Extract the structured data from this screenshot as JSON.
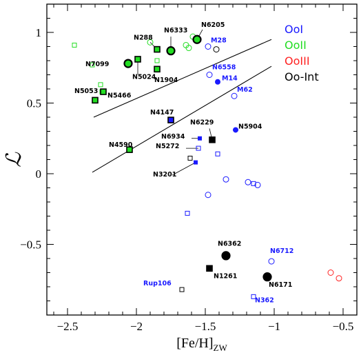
{
  "chart_data": {
    "type": "scatter",
    "xlabel": "[Fe/H]",
    "xlabel_sub": "ZW",
    "ylabel": "ℒ",
    "xlim": [
      -2.65,
      -0.4
    ],
    "ylim": [
      -1.0,
      1.2
    ],
    "xticks": [
      -2.5,
      -2,
      -1.5,
      -1,
      -0.5
    ],
    "xtick_labels": [
      "−2.5",
      "−2",
      "−1.5",
      "−1",
      "−0.5"
    ],
    "yticks": [
      -0.5,
      0,
      0.5,
      1
    ],
    "ytick_labels": [
      "−0.5",
      "0",
      "0.5",
      "1"
    ],
    "grid": false,
    "legend_position": "top-right",
    "colors": {
      "OoI": "#1a1aff",
      "OoII": "#22dd22",
      "OoIII": "#ff2222",
      "OoInt": "#000000"
    },
    "legend": [
      {
        "label": "OoI",
        "group": "OoI"
      },
      {
        "label": "OoII",
        "group": "OoII"
      },
      {
        "label": "OoIII",
        "group": "OoIII"
      },
      {
        "label": "Oo-Int",
        "group": "OoInt"
      }
    ],
    "lines": [
      {
        "x": [
          -2.31,
          -1.02
        ],
        "y": [
          0.4,
          0.95
        ]
      },
      {
        "x": [
          -2.32,
          -1.02
        ],
        "y": [
          0.01,
          0.76
        ]
      }
    ],
    "points": [
      {
        "x": -2.45,
        "y": 0.91,
        "shape": "square",
        "fill": "open",
        "group": "OoII"
      },
      {
        "x": -2.32,
        "y": 0.77,
        "shape": "square",
        "fill": "open",
        "group": "OoII"
      },
      {
        "x": -2.26,
        "y": 0.63,
        "shape": "square",
        "fill": "open",
        "group": "OoII"
      },
      {
        "x": -2.25,
        "y": 0.58,
        "shape": "square",
        "fill": "open",
        "group": "OoII"
      },
      {
        "x": -2.24,
        "y": 0.58,
        "shape": "square",
        "fill": "filled",
        "group": "OoII",
        "name": "N5466"
      },
      {
        "x": -2.3,
        "y": 0.52,
        "shape": "square",
        "fill": "filled",
        "group": "OoII",
        "name": "N5053"
      },
      {
        "x": -2.06,
        "y": 0.78,
        "shape": "circle",
        "fill": "filled",
        "big": true,
        "group": "OoII",
        "name": "N7099"
      },
      {
        "x": -1.99,
        "y": 0.81,
        "shape": "square",
        "fill": "filled",
        "group": "OoII",
        "name": "N5024"
      },
      {
        "x": -1.9,
        "y": 0.93,
        "shape": "circle",
        "fill": "open",
        "group": "OoII"
      },
      {
        "x": -1.85,
        "y": 0.88,
        "shape": "square",
        "fill": "filled",
        "group": "OoII",
        "name": "N288"
      },
      {
        "x": -1.85,
        "y": 0.8,
        "shape": "square",
        "fill": "open",
        "group": "OoII"
      },
      {
        "x": -1.85,
        "y": 0.74,
        "shape": "square",
        "fill": "filled",
        "group": "OoII",
        "name": "N1904"
      },
      {
        "x": -1.75,
        "y": 0.87,
        "shape": "circle",
        "fill": "filled",
        "big": true,
        "group": "OoII",
        "name": "N6333"
      },
      {
        "x": -1.64,
        "y": 0.91,
        "shape": "circle",
        "fill": "open",
        "group": "OoII"
      },
      {
        "x": -1.62,
        "y": 0.89,
        "shape": "circle",
        "fill": "open",
        "group": "OoII"
      },
      {
        "x": -1.59,
        "y": 0.97,
        "shape": "circle",
        "fill": "open",
        "group": "OoII"
      },
      {
        "x": -1.56,
        "y": 0.95,
        "shape": "circle",
        "fill": "filled",
        "big": true,
        "group": "OoII",
        "name": "N6205"
      },
      {
        "x": -2.05,
        "y": 0.17,
        "shape": "square",
        "fill": "filled",
        "group": "OoII",
        "name": "N4590"
      },
      {
        "x": -1.42,
        "y": 0.88,
        "shape": "circle",
        "fill": "open",
        "group": "OoInt"
      },
      {
        "x": -1.75,
        "y": 0.38,
        "shape": "square",
        "fill": "filled",
        "group": "OoI",
        "name": "N4147"
      },
      {
        "x": -1.48,
        "y": 0.9,
        "shape": "circle",
        "fill": "open",
        "group": "OoI",
        "name": "M28"
      },
      {
        "x": -1.47,
        "y": 0.7,
        "shape": "circle",
        "fill": "open",
        "group": "OoI",
        "name": "N6558"
      },
      {
        "x": -1.41,
        "y": 0.65,
        "shape": "circle",
        "fill": "filled",
        "group": "OoI",
        "name": "M14"
      },
      {
        "x": -1.29,
        "y": 0.55,
        "shape": "circle",
        "fill": "open",
        "group": "OoI",
        "name": "M62"
      },
      {
        "x": -1.28,
        "y": 0.31,
        "shape": "circle",
        "fill": "filled",
        "group": "OoI",
        "name": "N5904"
      },
      {
        "x": -1.45,
        "y": 0.24,
        "shape": "square",
        "fill": "filled",
        "group": "OoInt",
        "name": "N6229"
      },
      {
        "x": -1.54,
        "y": 0.25,
        "shape": "square",
        "fill": "filled",
        "small": true,
        "group": "OoI",
        "name": "N6934"
      },
      {
        "x": -1.55,
        "y": 0.18,
        "shape": "square",
        "fill": "open",
        "group": "OoI",
        "name": "N5272"
      },
      {
        "x": -1.41,
        "y": 0.14,
        "shape": "square",
        "fill": "open",
        "group": "OoI"
      },
      {
        "x": -1.61,
        "y": 0.11,
        "shape": "square",
        "fill": "open",
        "group": "OoInt"
      },
      {
        "x": -1.57,
        "y": 0.08,
        "shape": "square",
        "fill": "filled",
        "small": true,
        "group": "OoI",
        "name": "N3201"
      },
      {
        "x": -1.35,
        "y": -0.04,
        "shape": "circle",
        "fill": "open",
        "group": "OoI"
      },
      {
        "x": -1.19,
        "y": -0.06,
        "shape": "circle",
        "fill": "open",
        "group": "OoI"
      },
      {
        "x": -1.15,
        "y": -0.07,
        "shape": "square",
        "fill": "open",
        "group": "OoI"
      },
      {
        "x": -1.12,
        "y": -0.08,
        "shape": "circle",
        "fill": "open",
        "group": "OoI"
      },
      {
        "x": -1.48,
        "y": -0.15,
        "shape": "circle",
        "fill": "open",
        "group": "OoI"
      },
      {
        "x": -1.63,
        "y": -0.28,
        "shape": "square",
        "fill": "open",
        "group": "OoI"
      },
      {
        "x": -1.35,
        "y": -0.58,
        "shape": "circle",
        "fill": "filled",
        "big": true,
        "group": "OoInt",
        "name": "N6362"
      },
      {
        "x": -1.02,
        "y": -0.62,
        "shape": "circle",
        "fill": "open",
        "group": "OoI",
        "name": "N6712"
      },
      {
        "x": -1.47,
        "y": -0.67,
        "shape": "square",
        "fill": "filled",
        "group": "OoInt",
        "name": "N1261"
      },
      {
        "x": -1.05,
        "y": -0.73,
        "shape": "circle",
        "fill": "filled",
        "big": true,
        "group": "OoInt",
        "name": "N6171"
      },
      {
        "x": -1.67,
        "y": -0.82,
        "shape": "square",
        "fill": "open",
        "group": "OoInt",
        "name": "Rup106"
      },
      {
        "x": -1.15,
        "y": -0.87,
        "shape": "square",
        "fill": "open",
        "group": "OoI",
        "name": "N362"
      },
      {
        "x": -0.59,
        "y": -0.7,
        "shape": "circle",
        "fill": "open",
        "group": "OoIII"
      },
      {
        "x": -0.53,
        "y": -0.74,
        "shape": "circle",
        "fill": "open",
        "group": "OoIII"
      }
    ],
    "annotations": [
      {
        "text": "N288",
        "x": -2.02,
        "y": 0.95,
        "color": "#000000"
      },
      {
        "text": "N6333",
        "x": -1.8,
        "y": 1.0,
        "color": "#000000"
      },
      {
        "text": "N6205",
        "x": -1.53,
        "y": 1.04,
        "color": "#000000"
      },
      {
        "text": "M28",
        "x": -1.46,
        "y": 0.93,
        "color": "#1a1aff"
      },
      {
        "text": "N7099",
        "x": -2.37,
        "y": 0.76,
        "color": "#000000"
      },
      {
        "text": "N5024",
        "x": -2.03,
        "y": 0.67,
        "color": "#000000"
      },
      {
        "text": "N1904",
        "x": -1.87,
        "y": 0.65,
        "color": "#000000"
      },
      {
        "text": "N6558",
        "x": -1.45,
        "y": 0.74,
        "color": "#1a1aff"
      },
      {
        "text": "M14",
        "x": -1.38,
        "y": 0.66,
        "color": "#1a1aff"
      },
      {
        "text": "M62",
        "x": -1.27,
        "y": 0.58,
        "color": "#1a1aff"
      },
      {
        "text": "N5466",
        "x": -2.21,
        "y": 0.54,
        "color": "#000000"
      },
      {
        "text": "N5053",
        "x": -2.45,
        "y": 0.57,
        "color": "#000000"
      },
      {
        "text": "N4147",
        "x": -1.9,
        "y": 0.42,
        "color": "#000000"
      },
      {
        "text": "N6229",
        "x": -1.61,
        "y": 0.35,
        "color": "#000000"
      },
      {
        "text": "N5904",
        "x": -1.26,
        "y": 0.32,
        "color": "#000000"
      },
      {
        "text": "N6934",
        "x": -1.82,
        "y": 0.25,
        "color": "#000000"
      },
      {
        "text": "N4590",
        "x": -2.2,
        "y": 0.19,
        "color": "#000000"
      },
      {
        "text": "N5272",
        "x": -1.86,
        "y": 0.18,
        "color": "#000000"
      },
      {
        "text": "N3201",
        "x": -1.88,
        "y": -0.02,
        "color": "#000000"
      },
      {
        "text": "N6362",
        "x": -1.41,
        "y": -0.51,
        "color": "#000000"
      },
      {
        "text": "N6712",
        "x": -1.03,
        "y": -0.56,
        "color": "#1a1aff"
      },
      {
        "text": "N1261",
        "x": -1.44,
        "y": -0.74,
        "color": "#000000"
      },
      {
        "text": "N6171",
        "x": -1.04,
        "y": -0.8,
        "color": "#000000"
      },
      {
        "text": "Rup106",
        "x": -1.95,
        "y": -0.79,
        "color": "#1a1aff"
      },
      {
        "text": "N362",
        "x": -1.14,
        "y": -0.91,
        "color": "#1a1aff"
      }
    ],
    "leaders": [
      {
        "x1": -1.56,
        "y1": 0.95,
        "x2": -1.52,
        "y2": 1.02
      },
      {
        "x1": -1.75,
        "y1": 0.87,
        "x2": -1.75,
        "y2": 0.97
      },
      {
        "x1": -1.99,
        "y1": 0.81,
        "x2": -1.99,
        "y2": 0.7
      },
      {
        "x1": -1.45,
        "y1": 0.24,
        "x2": -1.47,
        "y2": 0.32
      },
      {
        "x1": -1.54,
        "y1": 0.25,
        "x2": -1.6,
        "y2": 0.25
      },
      {
        "x1": -1.55,
        "y1": 0.18,
        "x2": -1.64,
        "y2": 0.18
      },
      {
        "x1": -1.57,
        "y1": 0.08,
        "x2": -1.74,
        "y2": -0.01
      },
      {
        "x1": -1.9,
        "y1": 0.93,
        "x2": -1.86,
        "y2": 0.89
      }
    ]
  }
}
